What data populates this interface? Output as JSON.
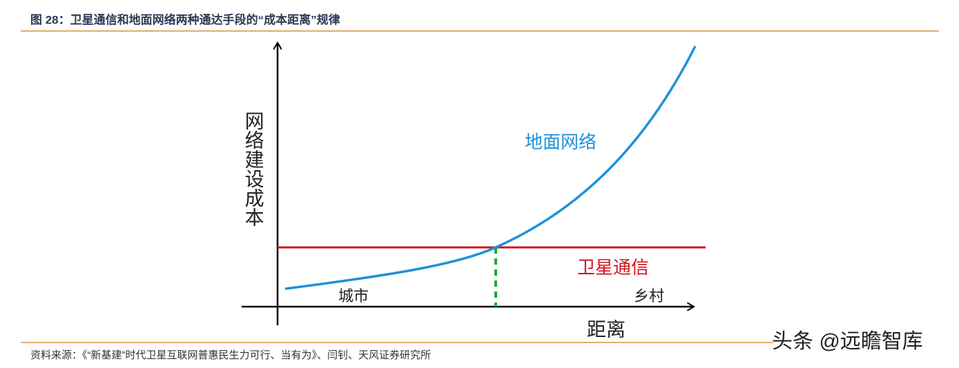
{
  "header": {
    "title": "图 28：卫星通信和地面网络两种通达手段的“成本距离”规律"
  },
  "diagram": {
    "y_axis_label": "网络建设成本",
    "x_axis_label": "距离",
    "curve_labels": {
      "ground": "地面网络",
      "satellite": "卫星通信"
    },
    "x_markers": {
      "city": "城市",
      "village": "乡村"
    }
  },
  "footer": {
    "source": "资料来源：《“新基建”时代卫星互联网普惠民生力可行、当有为》、闫钊、天风证券研究所",
    "watermark": "头条 @远瞻智库"
  }
}
